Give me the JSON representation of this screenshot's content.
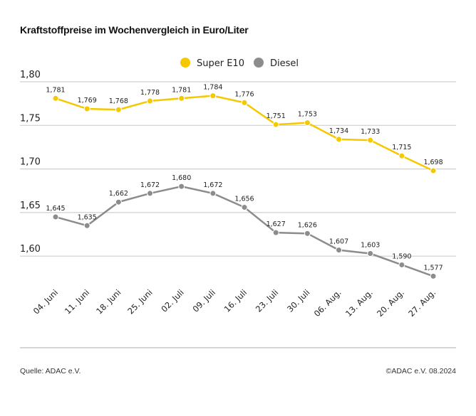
{
  "title": "Kraftstoffpreise im Wochenvergleich in Euro/Liter",
  "footer": {
    "source": "Quelle: ADAC e.V.",
    "copyright": "©ADAC e.V. 08.2024"
  },
  "chart_data": {
    "type": "line",
    "title": "Kraftstoffpreise im Wochenvergleich in Euro/Liter",
    "categories": [
      "04. Juni",
      "11. Juni",
      "18. Juni",
      "25. Juni",
      "02. Juli",
      "09. Juli",
      "16. Juli",
      "23. Juli",
      "30. Juli",
      "06. Aug.",
      "13. Aug.",
      "20. Aug.",
      "27. Aug."
    ],
    "y_ticks": [
      "1,80",
      "1,75",
      "1,70",
      "1,65",
      "1,60"
    ],
    "y_tick_values": [
      1.8,
      1.75,
      1.7,
      1.65,
      1.6
    ],
    "ylim": [
      1.5,
      1.8
    ],
    "grid": true,
    "legend_placement": "top-center",
    "series": [
      {
        "name": "Super E10",
        "color": "#f5c800",
        "values": [
          1.781,
          1.769,
          1.768,
          1.778,
          1.781,
          1.784,
          1.776,
          1.751,
          1.753,
          1.734,
          1.733,
          1.715,
          1.698
        ],
        "labels": [
          "1,781",
          "1,769",
          "1,768",
          "1,778",
          "1,781",
          "1,784",
          "1,776",
          "1,751",
          "1,753",
          "1,734",
          "1,733",
          "1,715",
          "1,698"
        ]
      },
      {
        "name": "Diesel",
        "color": "#8c8c8c",
        "values": [
          1.645,
          1.635,
          1.662,
          1.672,
          1.68,
          1.672,
          1.656,
          1.627,
          1.626,
          1.607,
          1.603,
          1.59,
          1.577
        ],
        "labels": [
          "1,645",
          "1,635",
          "1,662",
          "1,672",
          "1,680",
          "1,672",
          "1,656",
          "1,627",
          "1,626",
          "1,607",
          "1,603",
          "1,590",
          "1,577"
        ]
      }
    ]
  }
}
